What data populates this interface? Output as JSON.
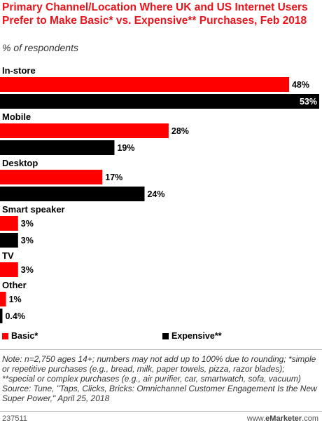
{
  "title": "Primary Channel/Location Where UK and US Internet Users Prefer to Make Basic* vs. Expensive** Purchases, Feb 2018",
  "subtitle": "% of respondents",
  "colors": {
    "basic": "#ff0000",
    "expensive": "#000000",
    "title": "#e8141b"
  },
  "legend": {
    "basic_label": "Basic*",
    "expensive_label": "Expensive**"
  },
  "chart_data": {
    "type": "bar",
    "orientation": "horizontal",
    "unit": "%",
    "categories": [
      "In-store",
      "Mobile",
      "Desktop",
      "Smart speaker",
      "TV",
      "Other"
    ],
    "series": [
      {
        "name": "Basic*",
        "values": [
          48,
          28,
          17,
          3,
          3,
          1
        ],
        "labels": [
          "48%",
          "28%",
          "17%",
          "3%",
          "3%",
          "1%"
        ]
      },
      {
        "name": "Expensive**",
        "values": [
          53,
          19,
          24,
          3,
          null,
          0.4
        ],
        "labels": [
          "53%",
          "19%",
          "24%",
          "3%",
          null,
          "0.4%"
        ]
      }
    ],
    "legend_position": "bottom",
    "grid": false
  },
  "note": "Note: n=2,750 ages 14+; numbers may not add up to 100% due to rounding; *simple or repetitive purchases (e.g., bread, milk, paper towels, pizza, razor blades); **special or complex purchases (e.g., air purifier, car, smartwatch, sofa, vacuum)",
  "source": "Source: Tune, \"Taps, Clicks, Bricks: Omnichannel Customer Engagement Is the New Super Power,\" April 25, 2018",
  "footer": {
    "chart_id": "237511",
    "brand_prefix": "www.",
    "brand_name": "eMarketer",
    "brand_suffix": ".com"
  }
}
